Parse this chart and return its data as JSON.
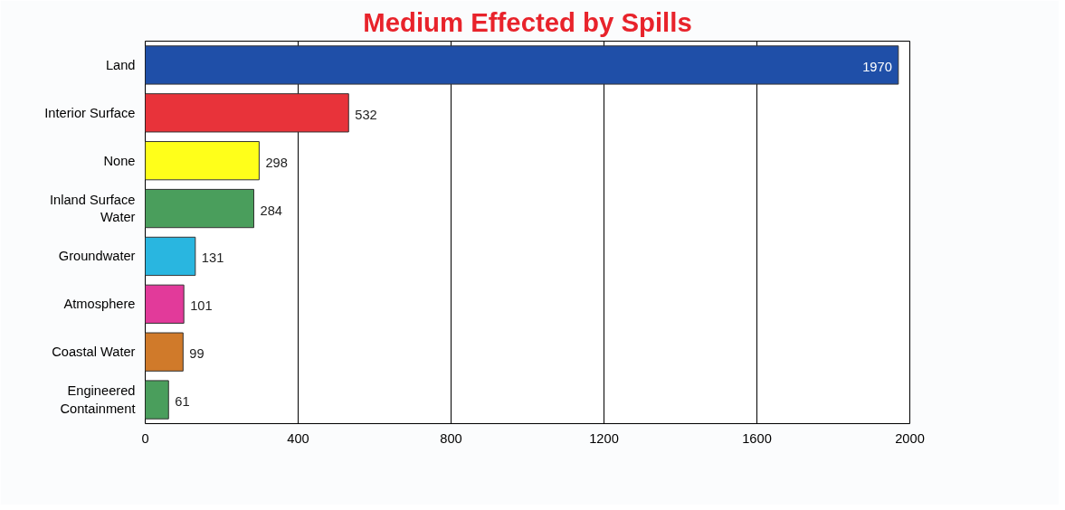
{
  "chart_data": {
    "type": "bar",
    "orientation": "horizontal",
    "title": "Medium Effected by Spills",
    "categories": [
      "Land",
      "Interior Surface",
      "None",
      "Inland Surface Water",
      "Groundwater",
      "Atmosphere",
      "Coastal Water",
      "Engineered Containment"
    ],
    "values": [
      1970,
      532,
      298,
      284,
      131,
      101,
      99,
      61
    ],
    "colors": [
      "#1f4fa8",
      "#e8333a",
      "#ffff1a",
      "#4a9e5c",
      "#29b6e0",
      "#e23a9a",
      "#d07a2a",
      "#4a9e5c"
    ],
    "xlim": [
      0,
      2000
    ],
    "xticks": [
      0,
      400,
      800,
      1200,
      1600,
      2000
    ],
    "grid": "x",
    "data_labels": true
  }
}
